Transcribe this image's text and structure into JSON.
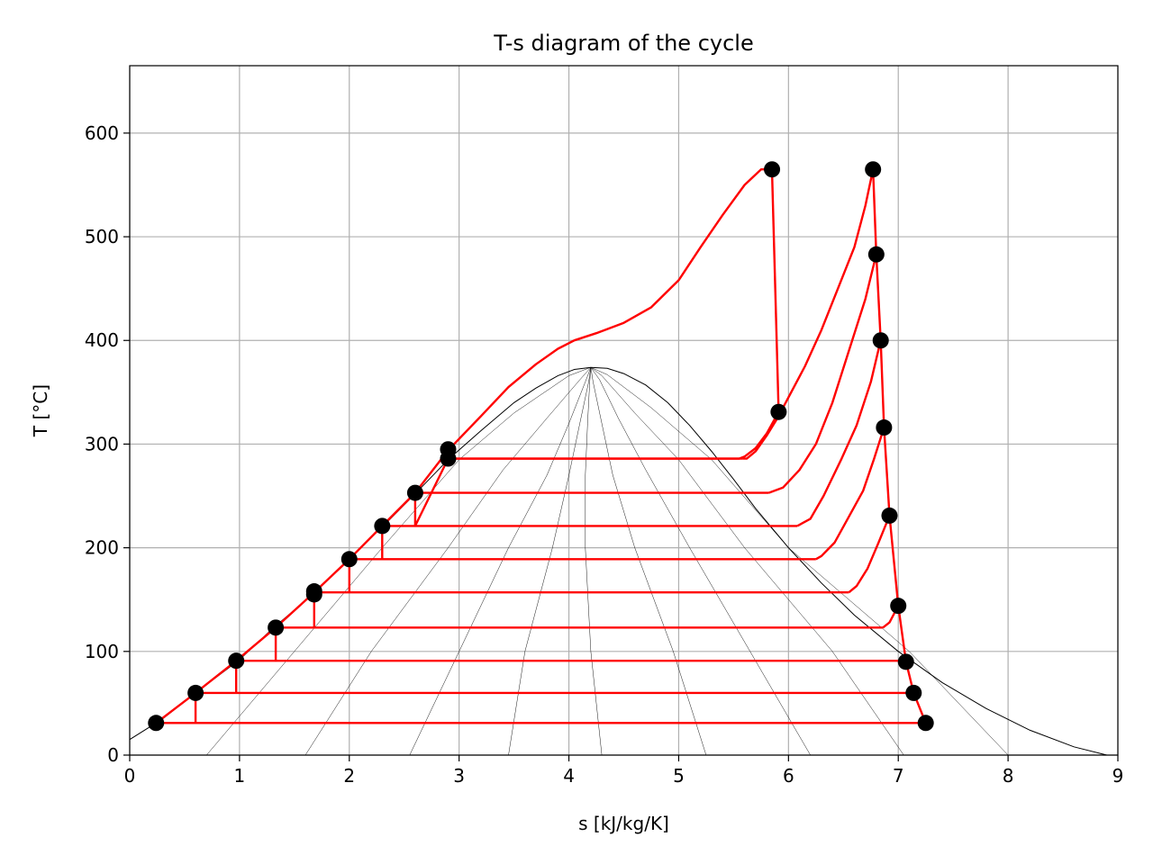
{
  "chart_data": {
    "type": "line",
    "title": "T-s diagram of the cycle",
    "xlabel": "s [kJ/kg/K]",
    "ylabel": "T [°C]",
    "xlim": [
      0,
      9
    ],
    "ylim": [
      0,
      665
    ],
    "grid": true,
    "x_ticks": [
      0,
      1,
      2,
      3,
      4,
      5,
      6,
      7,
      8,
      9
    ],
    "y_ticks": [
      0,
      100,
      200,
      300,
      400,
      500,
      600
    ],
    "colors": {
      "cycle": "#ff0000",
      "dome": "#000000",
      "points": "#000000",
      "grid": "#b0b0b0"
    },
    "saturation_dome": {
      "x": [
        0.0,
        0.3,
        0.6,
        1.0,
        1.3,
        1.7,
        2.0,
        2.3,
        2.6,
        2.9,
        3.2,
        3.5,
        3.7,
        3.9,
        4.05,
        4.2,
        4.35,
        4.5,
        4.7,
        4.9,
        5.1,
        5.3,
        5.5,
        5.7,
        6.0,
        6.3,
        6.6,
        7.0,
        7.4,
        7.8,
        8.2,
        8.6,
        8.9
      ],
      "y": [
        15,
        35,
        60,
        92,
        122,
        158,
        190,
        220,
        252,
        285,
        313,
        340,
        354,
        366,
        372,
        374,
        373,
        368,
        357,
        340,
        318,
        293,
        266,
        238,
        200,
        166,
        135,
        100,
        70,
        45,
        24,
        8,
        0
      ]
    },
    "quality_lines": [
      {
        "x": [
          0.7,
          1.5,
          2.3,
          3.0,
          3.5,
          4.0,
          4.2
        ],
        "y": [
          0,
          100,
          200,
          285,
          330,
          366,
          374
        ]
      },
      {
        "x": [
          1.6,
          2.2,
          2.9,
          3.4,
          3.8,
          4.1,
          4.2
        ],
        "y": [
          0,
          100,
          200,
          275,
          325,
          362,
          374
        ]
      },
      {
        "x": [
          2.55,
          3.0,
          3.45,
          3.8,
          4.0,
          4.15,
          4.2
        ],
        "y": [
          0,
          100,
          200,
          270,
          320,
          360,
          374
        ]
      },
      {
        "x": [
          3.45,
          3.6,
          3.85,
          4.0,
          4.1,
          4.18,
          4.2
        ],
        "y": [
          0,
          100,
          200,
          270,
          320,
          360,
          374
        ]
      },
      {
        "x": [
          4.3,
          4.2,
          4.15,
          4.15,
          4.17,
          4.19,
          4.2
        ],
        "y": [
          0,
          100,
          200,
          270,
          320,
          360,
          374
        ]
      },
      {
        "x": [
          5.25,
          4.95,
          4.6,
          4.4,
          4.3,
          4.22,
          4.2
        ],
        "y": [
          0,
          100,
          200,
          270,
          320,
          360,
          374
        ]
      },
      {
        "x": [
          6.2,
          5.65,
          5.1,
          4.7,
          4.45,
          4.28,
          4.2
        ],
        "y": [
          0,
          100,
          200,
          275,
          325,
          362,
          374
        ]
      },
      {
        "x": [
          7.05,
          6.4,
          5.6,
          5.0,
          4.6,
          4.3,
          4.2
        ],
        "y": [
          0,
          100,
          200,
          285,
          330,
          366,
          374
        ]
      },
      {
        "x": [
          8.0,
          7.1,
          6.0,
          5.3,
          4.75,
          4.35,
          4.2
        ],
        "y": [
          0,
          100,
          200,
          285,
          335,
          367,
          374
        ]
      }
    ],
    "series": [
      {
        "x": [
          0.24,
          0.6,
          0.97,
          1.33,
          1.68,
          2.0,
          2.3,
          2.6,
          2.9,
          3.2,
          3.45,
          3.7,
          3.9,
          4.05,
          4.25,
          4.5,
          4.75,
          5.0,
          5.2,
          5.4,
          5.6,
          5.75,
          5.85
        ],
        "y": [
          31,
          60,
          91,
          123,
          157,
          189,
          221,
          253,
          294,
          327,
          355,
          377,
          392,
          400,
          407,
          417,
          432,
          458,
          490,
          521,
          550,
          565,
          565
        ]
      },
      {
        "x": [
          5.85,
          5.91
        ],
        "y": [
          565,
          331
        ]
      },
      {
        "x": [
          5.91,
          5.8,
          5.7,
          5.6,
          5.55,
          2.9,
          2.9
        ],
        "y": [
          331,
          310,
          296,
          288,
          286,
          286,
          296
        ]
      },
      {
        "x": [
          6.77,
          6.7,
          6.6,
          6.45,
          6.3,
          6.15,
          6.0,
          5.9,
          5.8,
          5.7,
          5.62,
          5.58
        ],
        "y": [
          565,
          530,
          490,
          450,
          410,
          375,
          345,
          325,
          308,
          293,
          286,
          286
        ]
      },
      {
        "x": [
          5.58,
          2.9
        ],
        "y": [
          286,
          286
        ]
      },
      {
        "x": [
          6.77,
          6.8,
          6.84,
          6.87,
          6.92,
          7.0,
          7.07,
          7.14,
          7.25
        ],
        "y": [
          565,
          483,
          400,
          316,
          231,
          144,
          90,
          60,
          31
        ]
      },
      {
        "x": [
          6.8,
          6.7,
          6.55,
          6.4,
          6.25,
          6.1,
          5.95,
          5.82
        ],
        "y": [
          483,
          440,
          390,
          340,
          300,
          275,
          258,
          253
        ]
      },
      {
        "x": [
          5.82,
          2.6,
          2.6,
          2.9
        ],
        "y": [
          253,
          253,
          221,
          286
        ]
      },
      {
        "x": [
          6.84,
          6.75,
          6.62,
          6.48,
          6.32,
          6.2,
          6.08
        ],
        "y": [
          400,
          360,
          318,
          285,
          250,
          228,
          221
        ]
      },
      {
        "x": [
          6.08,
          2.3,
          2.3
        ],
        "y": [
          221,
          221,
          189
        ]
      },
      {
        "x": [
          6.87,
          6.78,
          6.68,
          6.55,
          6.42,
          6.3,
          6.25
        ],
        "y": [
          316,
          286,
          255,
          230,
          205,
          192,
          189
        ]
      },
      {
        "x": [
          6.25,
          2.0,
          2.0
        ],
        "y": [
          189,
          189,
          157
        ]
      },
      {
        "x": [
          6.92,
          6.82,
          6.72,
          6.62,
          6.55
        ],
        "y": [
          231,
          205,
          180,
          163,
          157
        ]
      },
      {
        "x": [
          6.55,
          1.68,
          1.68
        ],
        "y": [
          157,
          157,
          123
        ]
      },
      {
        "x": [
          7.0,
          6.92,
          6.86
        ],
        "y": [
          144,
          128,
          123
        ]
      },
      {
        "x": [
          6.86,
          1.33,
          1.33
        ],
        "y": [
          123,
          123,
          91
        ]
      },
      {
        "x": [
          7.07,
          0.97,
          0.97
        ],
        "y": [
          91,
          91,
          60
        ]
      },
      {
        "x": [
          7.14,
          0.6,
          0.6
        ],
        "y": [
          60,
          60,
          31
        ]
      },
      {
        "x": [
          7.25,
          0.24
        ],
        "y": [
          31,
          31
        ]
      }
    ],
    "points": {
      "x": [
        0.24,
        0.6,
        0.97,
        1.33,
        1.68,
        1.68,
        2.0,
        2.3,
        2.6,
        2.9,
        2.9,
        5.85,
        5.91,
        6.77,
        6.8,
        6.84,
        6.87,
        6.92,
        7.0,
        7.07,
        7.14,
        7.25
      ],
      "y": [
        31,
        60,
        91,
        123,
        155,
        158,
        189,
        221,
        253,
        286,
        295,
        565,
        331,
        565,
        483,
        400,
        316,
        231,
        144,
        90,
        60,
        31
      ]
    }
  }
}
